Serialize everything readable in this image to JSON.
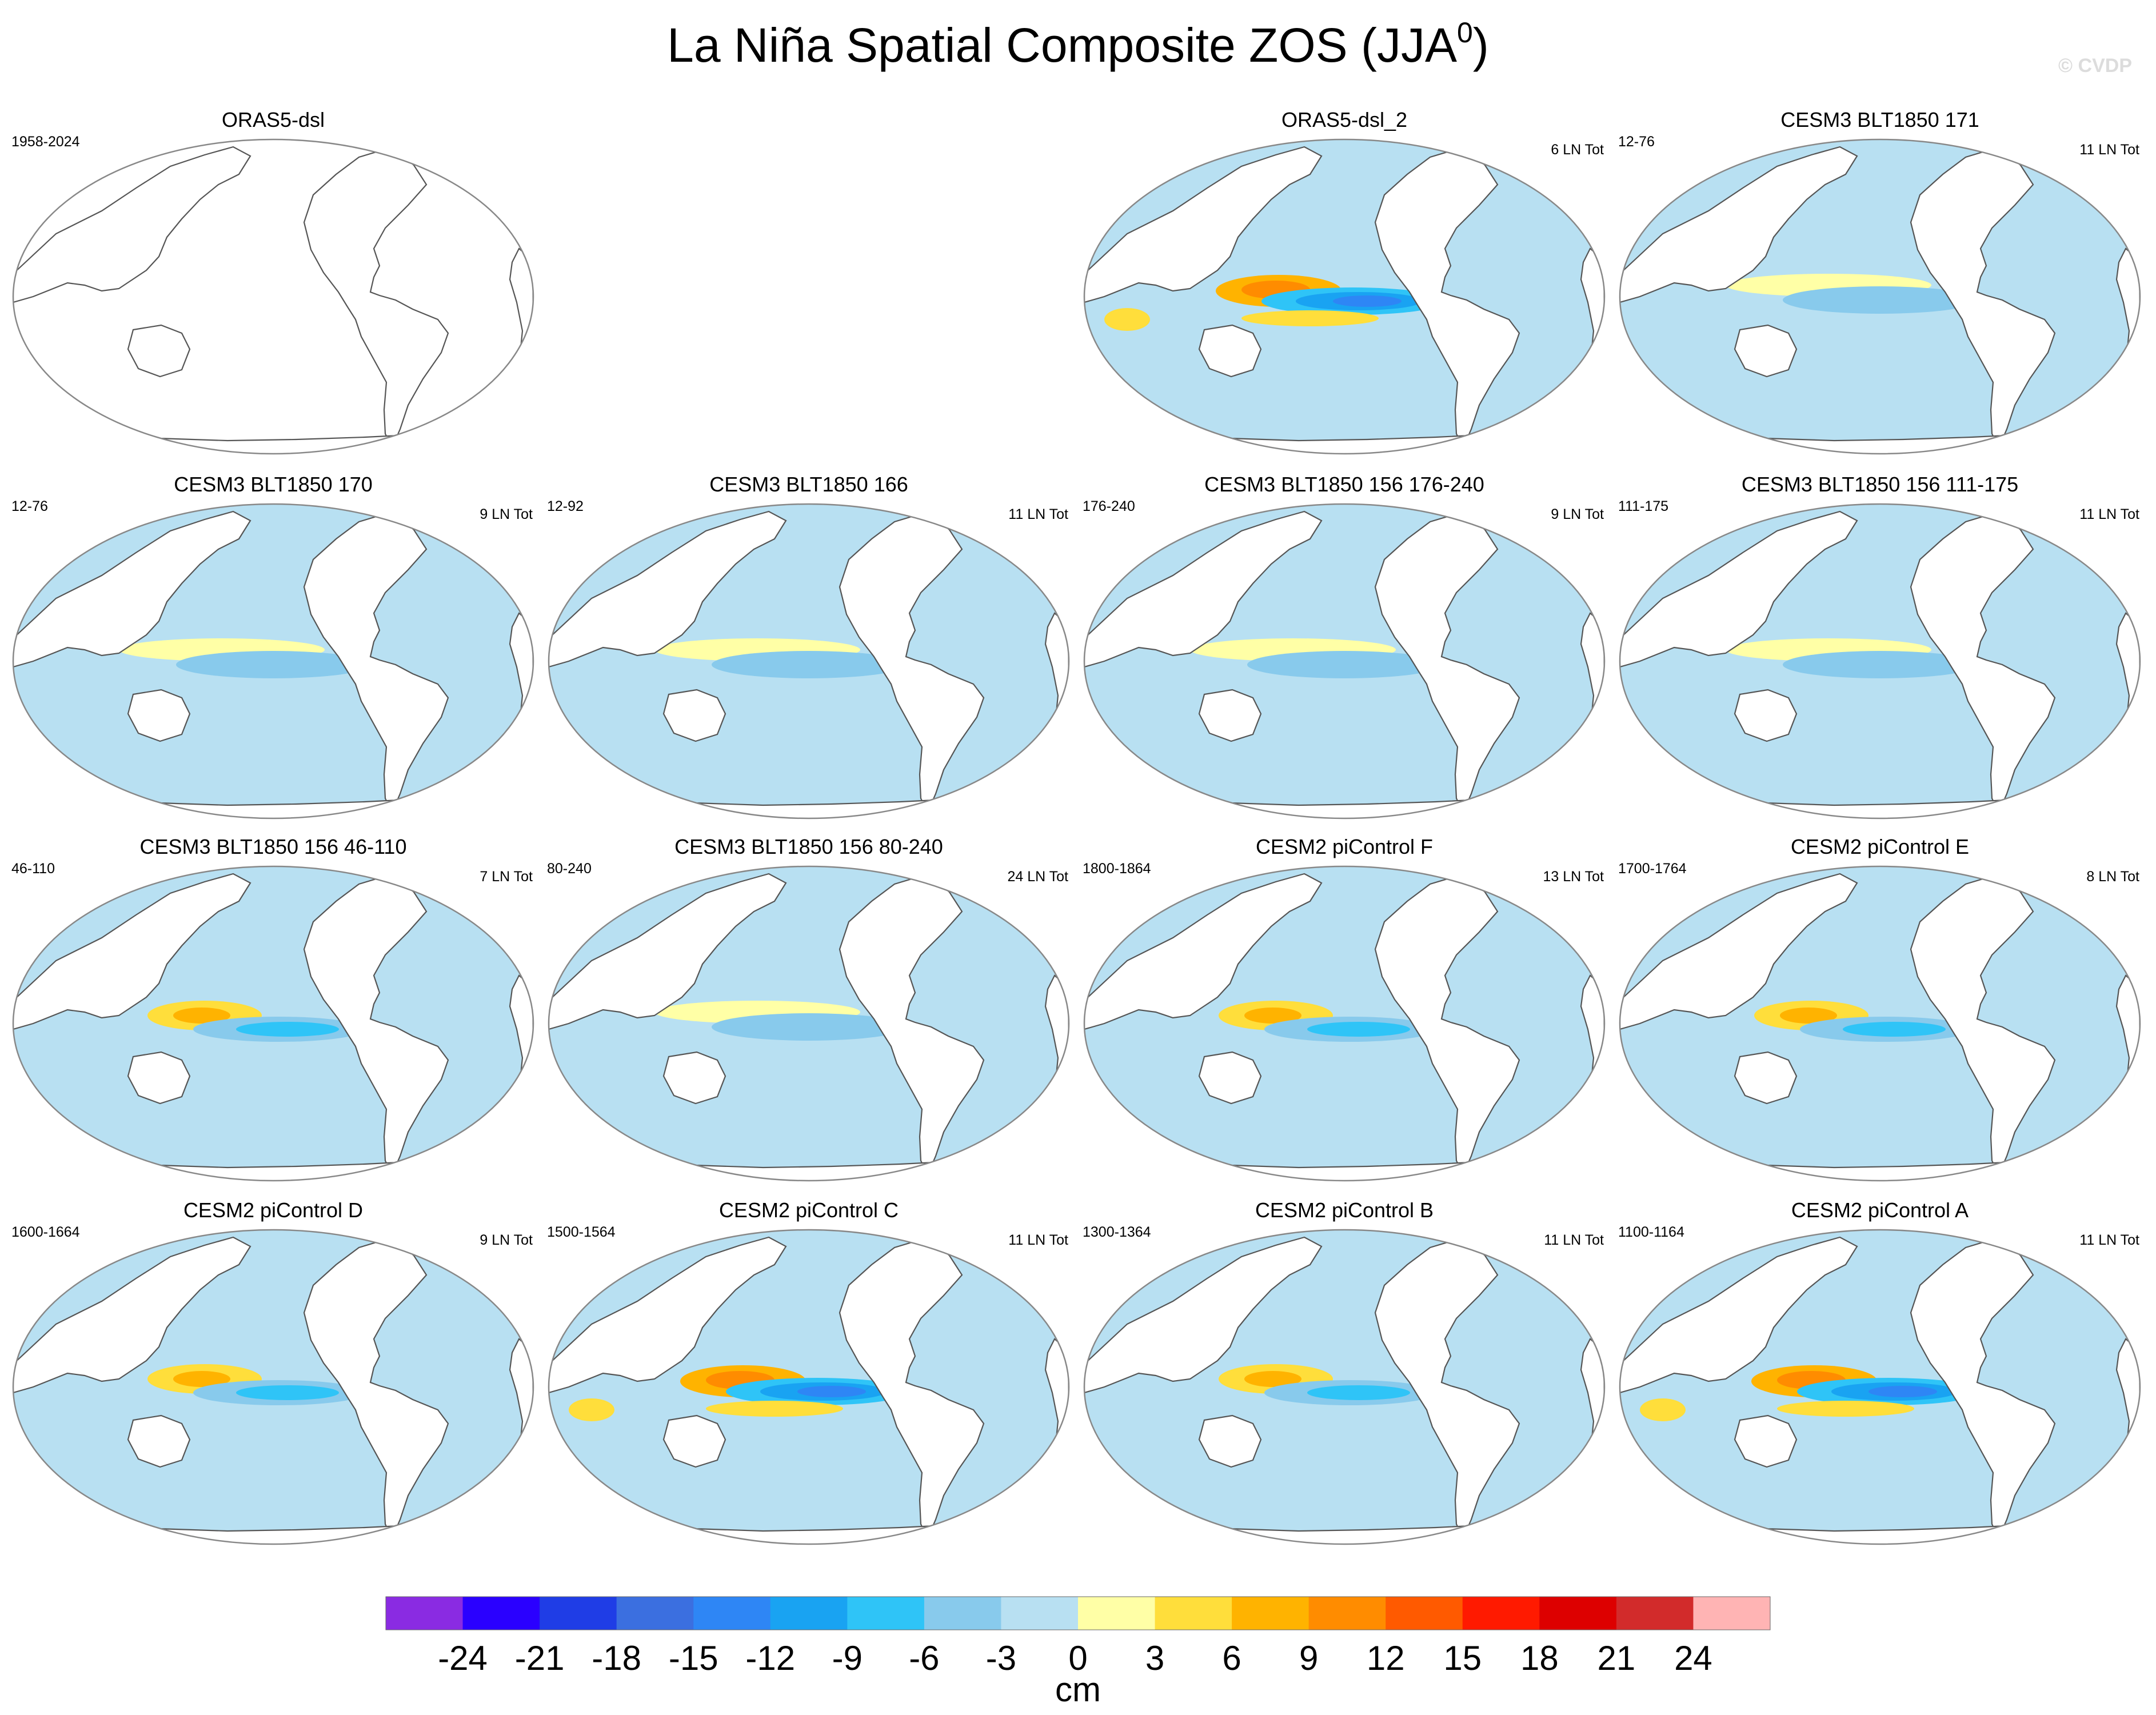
{
  "figure": {
    "title": "La Niña Spatial Composite ZOS (JJA",
    "title_superscript": "0",
    "title_suffix": ")",
    "watermark": "© CVDP",
    "colorbar": {
      "unit": "cm",
      "tick_labels": [
        "-24",
        "-21",
        "-18",
        "-15",
        "-12",
        "-9",
        "-6",
        "-3",
        "0",
        "3",
        "6",
        "9",
        "12",
        "15",
        "18",
        "21",
        "24"
      ],
      "colors": [
        "#8a2be2",
        "#2a00ff",
        "#1f3de6",
        "#3b6fe0",
        "#2e86f5",
        "#19a3f2",
        "#2fc4f7",
        "#88caec",
        "#b8e0f2",
        "#ffffa6",
        "#ffde3b",
        "#ffb300",
        "#ff8c00",
        "#ff5a00",
        "#ff1a00",
        "#dd0000",
        "#d22b2b",
        "#ffb4b4"
      ]
    },
    "panels": [
      {
        "title": "ORAS5-dsl",
        "left_text": "1958-2024",
        "right_text": "",
        "style": "empty"
      },
      {
        "title": "ORAS5-dsl_2",
        "left_text": "",
        "right_text": "6 LN Tot",
        "style": "strong"
      },
      {
        "title": "CESM3 BLT1850 171",
        "left_text": "12-76",
        "right_text": "11 LN Tot",
        "style": "weak"
      },
      {
        "title": "CESM3 BLT1850 170",
        "left_text": "12-76",
        "right_text": "9 LN Tot",
        "style": "weak"
      },
      {
        "title": "CESM3 BLT1850 166",
        "left_text": "12-92",
        "right_text": "11 LN Tot",
        "style": "weak"
      },
      {
        "title": "CESM3 BLT1850 156 176-240",
        "left_text": "176-240",
        "right_text": "9 LN Tot",
        "style": "weak"
      },
      {
        "title": "CESM3 BLT1850 156 111-175",
        "left_text": "111-175",
        "right_text": "11 LN Tot",
        "style": "weak"
      },
      {
        "title": "CESM3 BLT1850 156 46-110",
        "left_text": "46-110",
        "right_text": "7 LN Tot",
        "style": "medium"
      },
      {
        "title": "CESM3 BLT1850 156 80-240",
        "left_text": "80-240",
        "right_text": "24 LN Tot",
        "style": "weak"
      },
      {
        "title": "CESM2 piControl F",
        "left_text": "1800-1864",
        "right_text": "13 LN Tot",
        "style": "medium"
      },
      {
        "title": "CESM2 piControl E",
        "left_text": "1700-1764",
        "right_text": "8 LN Tot",
        "style": "medium"
      },
      {
        "title": "CESM2 piControl D",
        "left_text": "1600-1664",
        "right_text": "9 LN Tot",
        "style": "medium"
      },
      {
        "title": "CESM2 piControl C",
        "left_text": "1500-1564",
        "right_text": "11 LN Tot",
        "style": "strong"
      },
      {
        "title": "CESM2 piControl B",
        "left_text": "1300-1364",
        "right_text": "11 LN Tot",
        "style": "medium"
      },
      {
        "title": "CESM2 piControl A",
        "left_text": "1100-1164",
        "right_text": "11 LN Tot",
        "style": "strong"
      }
    ]
  }
}
